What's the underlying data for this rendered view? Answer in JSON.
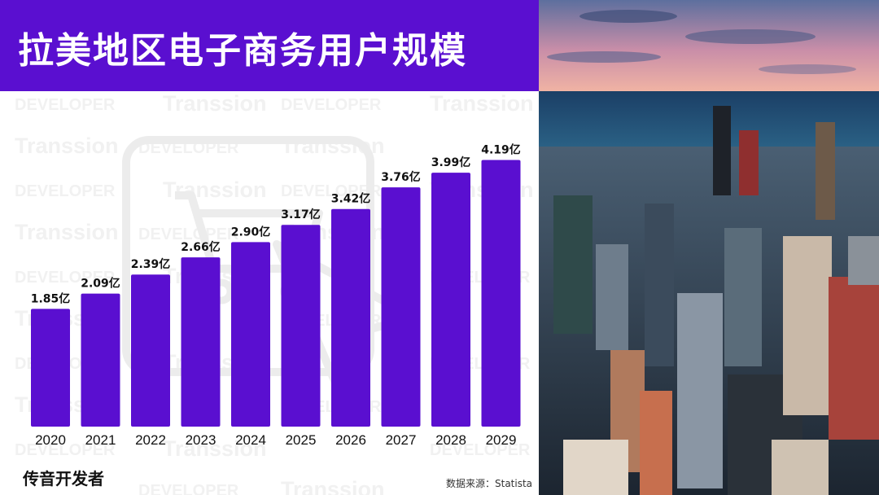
{
  "title": "拉美地区电子商务用户规模",
  "brand": "传音开发者",
  "source": "数据来源：Statista",
  "watermarks": [
    "DEVELOPER",
    "Transsion"
  ],
  "colors": {
    "accent": "#5a0fd0",
    "text": "#111111",
    "sky": "#e8a3a6",
    "sea": "#1e4f78"
  },
  "image": {
    "subject": "city-skyline-photo"
  },
  "chart_data": {
    "type": "bar",
    "title": "拉美地区电子商务用户规模",
    "categories": [
      "2020",
      "2021",
      "2022",
      "2023",
      "2024",
      "2025",
      "2026",
      "2027",
      "2028",
      "2029"
    ],
    "values": [
      1.85,
      2.09,
      2.39,
      2.66,
      2.9,
      3.17,
      3.42,
      3.76,
      3.99,
      4.19
    ],
    "labels": [
      "1.85亿",
      "2.09亿",
      "2.39亿",
      "2.66亿",
      "2.90亿",
      "3.17亿",
      "3.42亿",
      "3.76亿",
      "3.99亿",
      "4.19亿"
    ],
    "unit": "亿",
    "xlabel": "",
    "ylabel": "",
    "ylim": [
      0,
      4.35
    ],
    "grid": false,
    "legend": "none"
  }
}
